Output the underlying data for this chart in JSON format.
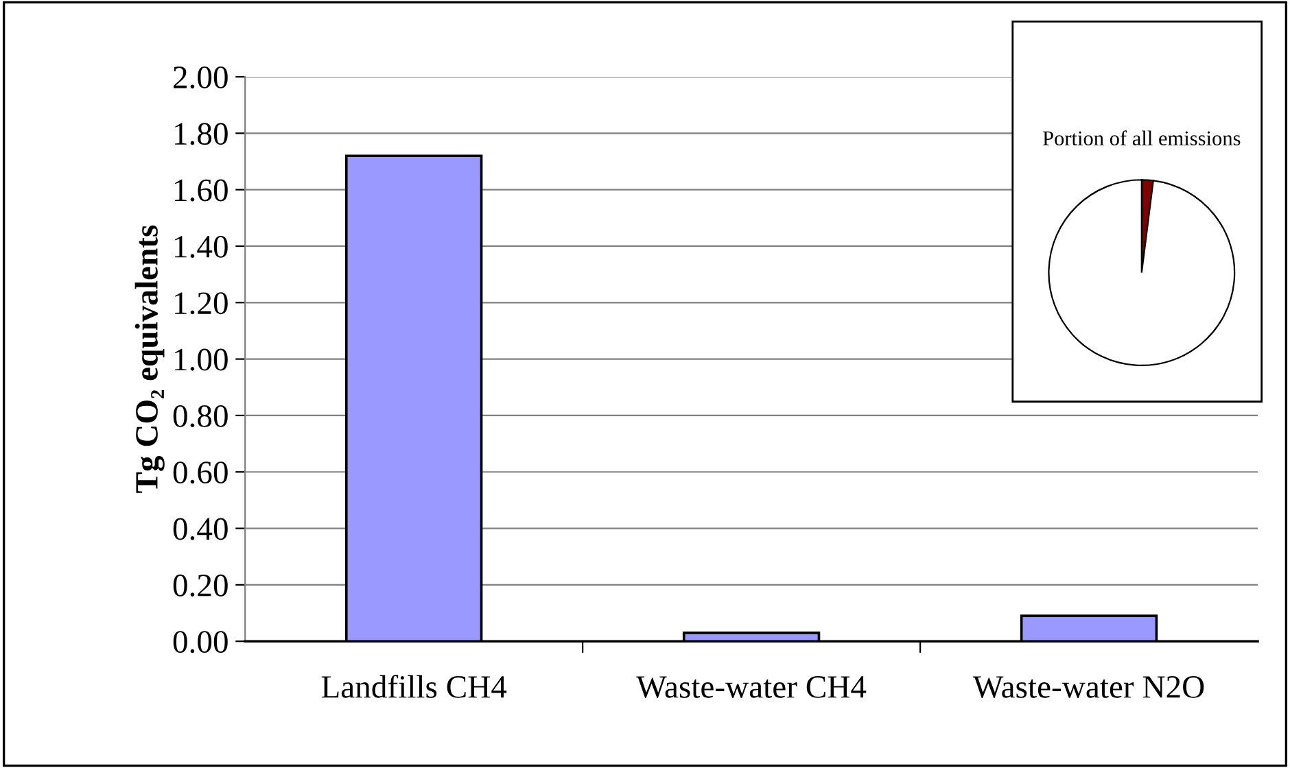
{
  "chart_data": [
    {
      "type": "bar",
      "ylabel": "Tg CO₂ equivalents",
      "categories": [
        "Landfills CH4",
        "Waste-water CH4",
        "Waste-water N2O"
      ],
      "values": [
        1.72,
        0.03,
        0.09
      ],
      "color": "#9999ff",
      "ylim": [
        0,
        2
      ],
      "yticks": [
        {
          "value": 0,
          "label": "0.00"
        },
        {
          "value": 0.2,
          "label": "0.20"
        },
        {
          "value": 0.4,
          "label": "0.40"
        },
        {
          "value": 0.6,
          "label": "0.60"
        },
        {
          "value": 0.8,
          "label": "0.80"
        },
        {
          "value": 1.0,
          "label": "1.00"
        },
        {
          "value": 1.2,
          "label": "1.20"
        },
        {
          "value": 1.4,
          "label": "1.40"
        },
        {
          "value": 1.6,
          "label": "1.60"
        },
        {
          "value": 1.8,
          "label": "1.80"
        },
        {
          "value": 2.0,
          "label": "2.00"
        }
      ],
      "grid": "y"
    },
    {
      "type": "pie",
      "title": "Portion of all emissions",
      "categories": [
        null,
        null
      ],
      "values": [
        2,
        98
      ],
      "colors": [
        "#800000",
        "#ffffff"
      ]
    }
  ]
}
